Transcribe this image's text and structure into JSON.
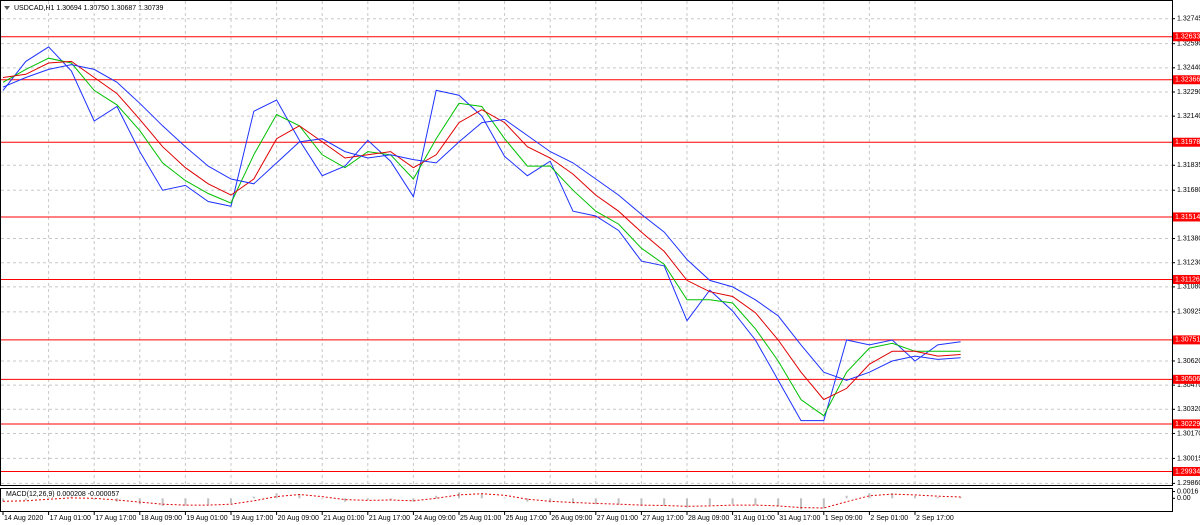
{
  "chart_data": [
    {
      "type": "line",
      "title": "USDCAD,H1  1.30694 1.30750 1.30687 1.30739",
      "categories": [
        "14 Aug 2020",
        null,
        "17 Aug 01:00",
        null,
        "17 Aug 17:00",
        null,
        "18 Aug 09:00",
        null,
        "19 Aug 01:00",
        null,
        "19 Aug 17:00",
        null,
        "20 Aug 09:00",
        null,
        "21 Aug 01:00",
        null,
        "21 Aug 17:00",
        null,
        "24 Aug 09:00",
        null,
        "25 Aug 01:00",
        null,
        "25 Aug 17:00",
        null,
        "26 Aug 09:00",
        null,
        "27 Aug 01:00",
        null,
        "27 Aug 17:00",
        null,
        "28 Aug 09:00",
        null,
        "31 Aug 01:00",
        null,
        "31 Aug 17:00",
        null,
        "1 Sep 09:00",
        null,
        "2 Sep 01:00",
        null,
        "2 Sep 17:00",
        null,
        null
      ],
      "series": [
        {
          "color": "#1e32ff",
          "values": [
            1.323,
            1.3248,
            1.3257,
            1.3242,
            1.3211,
            1.322,
            1.3192,
            1.3168,
            1.3171,
            1.3161,
            1.3158,
            1.3217,
            1.3224,
            1.3199,
            1.3177,
            1.3183,
            1.3199,
            1.3186,
            1.3164,
            1.323,
            1.3227,
            1.3214,
            1.3189,
            1.3177,
            1.3186,
            1.3155,
            1.3152,
            1.3143,
            1.3124,
            1.3121,
            1.3087,
            1.3106,
            1.3093,
            1.3075,
            1.305,
            1.3025,
            1.3025,
            1.3075,
            1.3072,
            1.3075,
            1.3062,
            1.3072,
            1.30739
          ]
        },
        {
          "color": "#00c000",
          "values": [
            1.3235,
            1.3243,
            1.325,
            1.3247,
            1.323,
            1.3221,
            1.3205,
            1.3185,
            1.3174,
            1.3166,
            1.316,
            1.319,
            1.3215,
            1.3208,
            1.319,
            1.3182,
            1.3192,
            1.319,
            1.3175,
            1.32,
            1.3222,
            1.322,
            1.32,
            1.3183,
            1.3183,
            1.3168,
            1.3155,
            1.3147,
            1.3132,
            1.3122,
            1.31,
            1.31,
            1.3098,
            1.3082,
            1.3062,
            1.3038,
            1.3028,
            1.3055,
            1.307,
            1.3073,
            1.3068,
            1.3068,
            1.3068
          ]
        },
        {
          "color": "#e00000",
          "values": [
            1.3238,
            1.324,
            1.3247,
            1.3248,
            1.3238,
            1.3228,
            1.3212,
            1.3195,
            1.3182,
            1.3172,
            1.3165,
            1.3175,
            1.32,
            1.3208,
            1.3198,
            1.3188,
            1.319,
            1.3192,
            1.3182,
            1.319,
            1.321,
            1.3218,
            1.321,
            1.3195,
            1.3188,
            1.3178,
            1.3165,
            1.3155,
            1.3142,
            1.313,
            1.3112,
            1.3105,
            1.3102,
            1.3092,
            1.3075,
            1.3055,
            1.3038,
            1.3045,
            1.306,
            1.3068,
            1.3068,
            1.3065,
            1.3066
          ]
        },
        {
          "color": "#1e32ff",
          "values": [
            1.3232,
            1.3238,
            1.3243,
            1.3246,
            1.3243,
            1.3235,
            1.3222,
            1.3208,
            1.3195,
            1.3183,
            1.3175,
            1.3172,
            1.3185,
            1.3198,
            1.32,
            1.3192,
            1.3188,
            1.319,
            1.3187,
            1.3185,
            1.3198,
            1.321,
            1.3212,
            1.3202,
            1.3192,
            1.3185,
            1.3175,
            1.3165,
            1.3153,
            1.3142,
            1.3125,
            1.3112,
            1.3108,
            1.31,
            1.309,
            1.3072,
            1.3055,
            1.305,
            1.3055,
            1.3062,
            1.3065,
            1.3063,
            1.3064
          ]
        }
      ],
      "hlines": [
        1.32633,
        1.32366,
        1.31978,
        1.31514,
        1.31126,
        1.30751,
        1.30506,
        1.30229,
        1.29934
      ],
      "hline_color": "#ff0000",
      "ylim": [
        1.2985,
        1.3283
      ],
      "yticks": [
        {
          "value": 1.32745,
          "label": "1.32745"
        },
        {
          "value": 1.3259,
          "label": "1.32590"
        },
        {
          "value": 1.3244,
          "label": "1.32440"
        },
        {
          "value": 1.3229,
          "label": "1.32290"
        },
        {
          "value": 1.3214,
          "label": "1.32140"
        },
        {
          "value": 1.31835,
          "label": "1.31835"
        },
        {
          "value": 1.3168,
          "label": "1.31680"
        },
        {
          "value": 1.3138,
          "label": "1.31380"
        },
        {
          "value": 1.3123,
          "label": "1.31230"
        },
        {
          "value": 1.3108,
          "label": "1.31080"
        },
        {
          "value": 1.30925,
          "label": "1.30925"
        },
        {
          "value": 1.3062,
          "label": "1.30620"
        },
        {
          "value": 1.3047,
          "label": "1.30470"
        },
        {
          "value": 1.3032,
          "label": "1.30320"
        },
        {
          "value": 1.3017,
          "label": "1.30170"
        },
        {
          "value": 1.30015,
          "label": "1.30015"
        },
        {
          "value": 1.2986,
          "label": "1.29860"
        }
      ],
      "grid": true
    },
    {
      "type": "macd",
      "title": "MACD(12,26,9) 0.000208 -0.000057",
      "histogram": {
        "color": "#c0c0c0",
        "values": [
          -0.0008,
          -0.0005,
          0.0002,
          0.0004,
          -0.0003,
          -0.0008,
          -0.0014,
          -0.0018,
          -0.0017,
          -0.0015,
          -0.0012,
          0.0004,
          0.0012,
          0.001,
          -0.0002,
          -0.0008,
          -0.0004,
          -0.0003,
          -0.0008,
          0.0006,
          0.0014,
          0.0012,
          0.0002,
          -0.0008,
          -0.001,
          -0.0012,
          -0.0014,
          -0.0015,
          -0.0018,
          -0.0018,
          -0.0022,
          -0.0016,
          -0.0014,
          -0.0016,
          -0.002,
          -0.0026,
          -0.0024,
          0.0006,
          0.0012,
          0.0012,
          0.0006,
          0.0003,
          0.0002
        ]
      },
      "signal": {
        "color": "#e00000",
        "values": [
          -0.0007,
          -0.0006,
          -0.0002,
          0.0001,
          0.0,
          -0.0004,
          -0.0009,
          -0.0014,
          -0.0016,
          -0.0016,
          -0.0014,
          -0.0006,
          0.0004,
          0.0009,
          0.0004,
          -0.0003,
          -0.0005,
          -0.0004,
          -0.0006,
          0.0,
          0.0008,
          0.0011,
          0.0007,
          -0.0002,
          -0.0007,
          -0.001,
          -0.0012,
          -0.0014,
          -0.0016,
          -0.0017,
          -0.0019,
          -0.0018,
          -0.0016,
          -0.0016,
          -0.0018,
          -0.0022,
          -0.0023,
          -0.0008,
          0.0006,
          0.001,
          0.0008,
          0.0005,
          0.0003
        ]
      },
      "ylim": [
        -0.003,
        0.0022
      ],
      "yticks": [
        0.0016,
        {
          "value": 0,
          "label": "0.00"
        }
      ]
    }
  ]
}
